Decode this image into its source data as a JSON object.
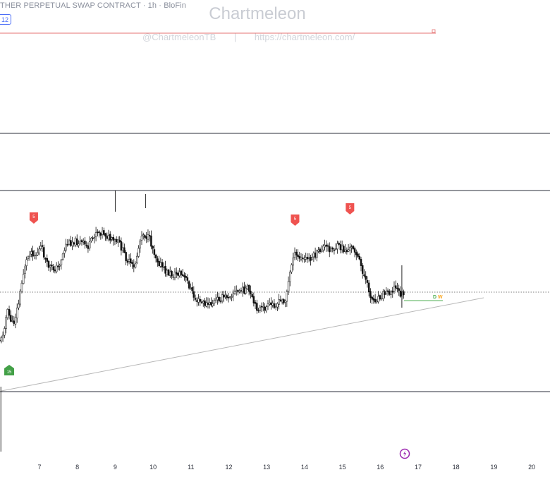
{
  "header": {
    "title": "THER PERPETUAL SWAP CONTRACT · 1h · BloFin",
    "badge": "12"
  },
  "watermark": {
    "title": "Chartmeleon",
    "handle": "@ChartmeleonTB",
    "separator": "|",
    "url": "https://chartmeleon.com/"
  },
  "colors": {
    "candle": "#111111",
    "level_line": "#2a2e39",
    "red_line": "#e57373",
    "dotted_line": "#555555",
    "trendline": "#b8b8b8",
    "sell_marker": "#ef5350",
    "buy_marker": "#43a047",
    "green_line": "#4caf50",
    "dw_d": "#4caf50",
    "dw_w": "#f9a825",
    "logo": "#9c27b0"
  },
  "chart_data": {
    "type": "candlestick",
    "x_tick_labels": [
      "7",
      "8",
      "9",
      "10",
      "11",
      "12",
      "13",
      "14",
      "15",
      "16",
      "17",
      "18",
      "19",
      "20"
    ],
    "y_scale": "price (unlabeled, normalized 0–1 of visible range)",
    "close_path": [
      {
        "x": 6.0,
        "y": 0.26
      },
      {
        "x": 6.15,
        "y": 0.4
      },
      {
        "x": 6.3,
        "y": 0.33
      },
      {
        "x": 6.45,
        "y": 0.44
      },
      {
        "x": 6.6,
        "y": 0.62
      },
      {
        "x": 6.75,
        "y": 0.7
      },
      {
        "x": 6.9,
        "y": 0.68
      },
      {
        "x": 7.05,
        "y": 0.72
      },
      {
        "x": 7.2,
        "y": 0.63
      },
      {
        "x": 7.35,
        "y": 0.61
      },
      {
        "x": 7.5,
        "y": 0.62
      },
      {
        "x": 7.7,
        "y": 0.73
      },
      {
        "x": 7.9,
        "y": 0.75
      },
      {
        "x": 8.1,
        "y": 0.74
      },
      {
        "x": 8.3,
        "y": 0.72
      },
      {
        "x": 8.5,
        "y": 0.8
      },
      {
        "x": 8.7,
        "y": 0.79
      },
      {
        "x": 8.9,
        "y": 0.75
      },
      {
        "x": 9.1,
        "y": 0.74
      },
      {
        "x": 9.3,
        "y": 0.66
      },
      {
        "x": 9.5,
        "y": 0.61
      },
      {
        "x": 9.7,
        "y": 0.79
      },
      {
        "x": 9.9,
        "y": 0.76
      },
      {
        "x": 10.1,
        "y": 0.66
      },
      {
        "x": 10.3,
        "y": 0.6
      },
      {
        "x": 10.5,
        "y": 0.58
      },
      {
        "x": 10.7,
        "y": 0.59
      },
      {
        "x": 10.9,
        "y": 0.55
      },
      {
        "x": 11.1,
        "y": 0.46
      },
      {
        "x": 11.3,
        "y": 0.44
      },
      {
        "x": 11.5,
        "y": 0.43
      },
      {
        "x": 11.7,
        "y": 0.46
      },
      {
        "x": 11.9,
        "y": 0.47
      },
      {
        "x": 12.1,
        "y": 0.49
      },
      {
        "x": 12.3,
        "y": 0.5
      },
      {
        "x": 12.5,
        "y": 0.51
      },
      {
        "x": 12.7,
        "y": 0.42
      },
      {
        "x": 12.9,
        "y": 0.41
      },
      {
        "x": 13.1,
        "y": 0.43
      },
      {
        "x": 13.3,
        "y": 0.44
      },
      {
        "x": 13.5,
        "y": 0.46
      },
      {
        "x": 13.7,
        "y": 0.68
      },
      {
        "x": 13.9,
        "y": 0.66
      },
      {
        "x": 14.1,
        "y": 0.66
      },
      {
        "x": 14.3,
        "y": 0.68
      },
      {
        "x": 14.5,
        "y": 0.72
      },
      {
        "x": 14.7,
        "y": 0.71
      },
      {
        "x": 14.9,
        "y": 0.72
      },
      {
        "x": 15.1,
        "y": 0.7
      },
      {
        "x": 15.3,
        "y": 0.72
      },
      {
        "x": 15.5,
        "y": 0.62
      },
      {
        "x": 15.65,
        "y": 0.53
      },
      {
        "x": 15.8,
        "y": 0.45
      },
      {
        "x": 15.95,
        "y": 0.47
      },
      {
        "x": 16.1,
        "y": 0.49
      },
      {
        "x": 16.25,
        "y": 0.5
      },
      {
        "x": 16.4,
        "y": 0.52
      },
      {
        "x": 16.55,
        "y": 0.48
      },
      {
        "x": 16.62,
        "y": 0.49
      }
    ],
    "markers": [
      {
        "label": "5",
        "kind": "sell",
        "x": 6.85
      },
      {
        "label": "5",
        "kind": "sell",
        "x": 13.75
      },
      {
        "label": "5",
        "kind": "sell",
        "x": 15.2
      },
      {
        "label": "15",
        "kind": "buy",
        "x": 6.2
      }
    ],
    "annotations": {
      "dw_labels": [
        "D",
        "W"
      ]
    }
  }
}
